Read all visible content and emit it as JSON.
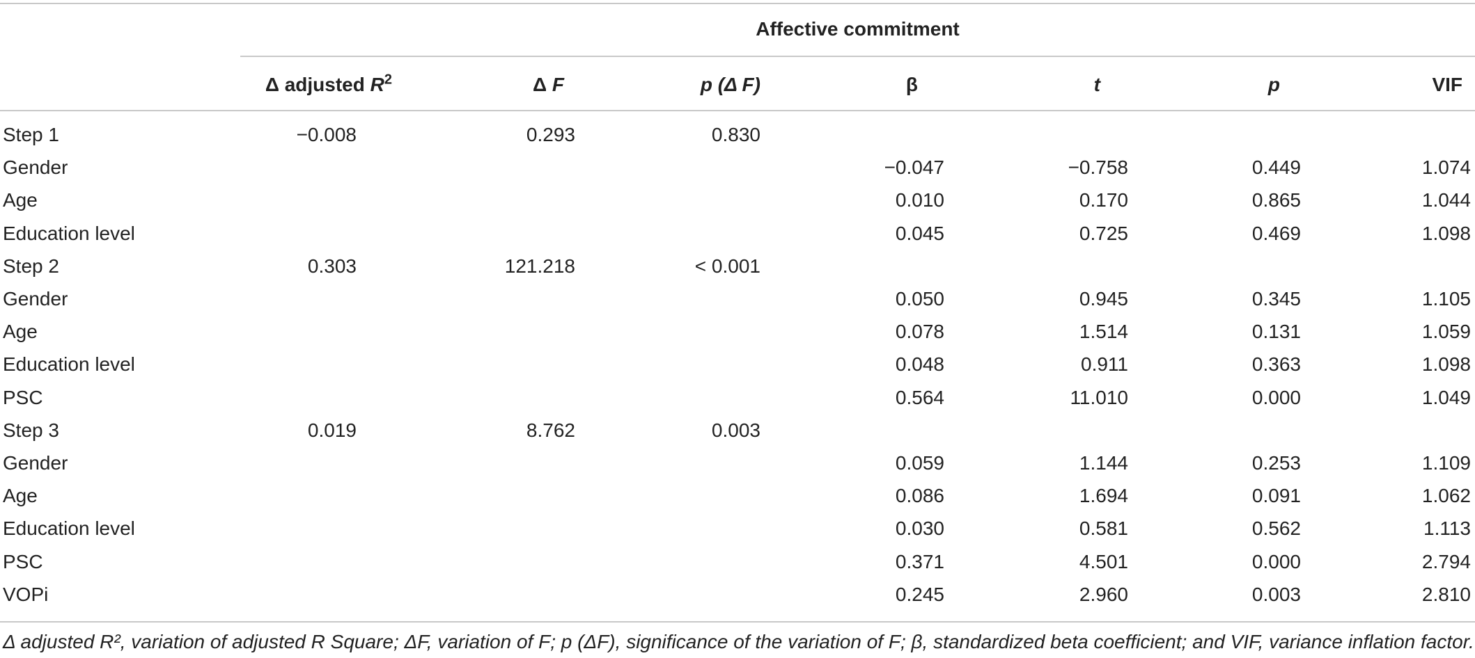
{
  "table": {
    "group_header": "Affective commitment",
    "columns": [
      {
        "pre": "Δ adjusted ",
        "main": "R",
        "sup": "2"
      },
      {
        "pre": "Δ ",
        "main": "F",
        "sup": ""
      },
      {
        "pre": "",
        "main": "p (Δ F)",
        "sup": ""
      },
      {
        "pre": "",
        "main": "β",
        "sup": ""
      },
      {
        "pre": "",
        "main": "t",
        "sup": ""
      },
      {
        "pre": "",
        "main": "p",
        "sup": ""
      },
      {
        "pre": "",
        "main": "VIF",
        "sup": ""
      }
    ],
    "rows": [
      {
        "label": "Step 1",
        "cells": [
          "−0.008",
          "0.293",
          "0.830",
          "",
          "",
          "",
          ""
        ]
      },
      {
        "label": "Gender",
        "cells": [
          "",
          "",
          "",
          "−0.047",
          "−0.758",
          "0.449",
          "1.074"
        ]
      },
      {
        "label": "Age",
        "cells": [
          "",
          "",
          "",
          "0.010",
          "0.170",
          "0.865",
          "1.044"
        ]
      },
      {
        "label": "Education level",
        "cells": [
          "",
          "",
          "",
          "0.045",
          "0.725",
          "0.469",
          "1.098"
        ]
      },
      {
        "label": "Step 2",
        "cells": [
          "0.303",
          "121.218",
          "< 0.001",
          "",
          "",
          "",
          ""
        ]
      },
      {
        "label": "Gender",
        "cells": [
          "",
          "",
          "",
          "0.050",
          "0.945",
          "0.345",
          "1.105"
        ]
      },
      {
        "label": "Age",
        "cells": [
          "",
          "",
          "",
          "0.078",
          "1.514",
          "0.131",
          "1.059"
        ]
      },
      {
        "label": "Education level",
        "cells": [
          "",
          "",
          "",
          "0.048",
          "0.911",
          "0.363",
          "1.098"
        ]
      },
      {
        "label": "PSC",
        "cells": [
          "",
          "",
          "",
          "0.564",
          "11.010",
          "0.000",
          "1.049"
        ]
      },
      {
        "label": "Step 3",
        "cells": [
          "0.019",
          "8.762",
          "0.003",
          "",
          "",
          "",
          ""
        ]
      },
      {
        "label": "Gender",
        "cells": [
          "",
          "",
          "",
          "0.059",
          "1.144",
          "0.253",
          "1.109"
        ]
      },
      {
        "label": "Age",
        "cells": [
          "",
          "",
          "",
          "0.086",
          "1.694",
          "0.091",
          "1.062"
        ]
      },
      {
        "label": "Education level",
        "cells": [
          "",
          "",
          "",
          "0.030",
          "0.581",
          "0.562",
          "1.113"
        ]
      },
      {
        "label": "PSC",
        "cells": [
          "",
          "",
          "",
          "0.371",
          "4.501",
          "0.000",
          "2.794"
        ]
      },
      {
        "label": "VOPi",
        "cells": [
          "",
          "",
          "",
          "0.245",
          "2.960",
          "0.003",
          "2.810"
        ]
      }
    ],
    "footnote": "Δ adjusted R², variation of adjusted R Square; ΔF, variation of F; p (ΔF), significance of the variation of F; β, standardized beta coefficient; and VIF, variance inflation factor."
  }
}
